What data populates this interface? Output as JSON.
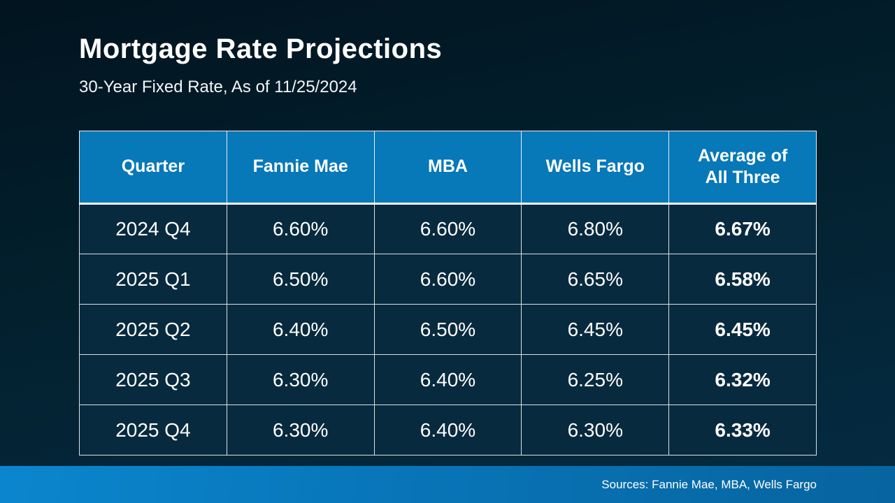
{
  "slide": {
    "title": "Mortgage Rate Projections",
    "subtitle": "30-Year Fixed Rate, As of 11/25/2024",
    "sources_note": "Sources: Fannie Mae, MBA, Wells Fargo"
  },
  "colors": {
    "background_top": "#01141f",
    "background_bottom": "#052c43",
    "header_blue": "#0778b8",
    "cell_navy": "#082a3e",
    "footer_gradient_left": "#0b86ce",
    "footer_gradient_right": "#07649f",
    "grid_line": "#d9e2e8",
    "text": "#ffffff"
  },
  "chart_data": {
    "type": "table",
    "title": "Mortgage Rate Projections",
    "subtitle": "30-Year Fixed Rate, As of 11/25/2024",
    "columns": [
      "Quarter",
      "Fannie Mae",
      "MBA",
      "Wells Fargo",
      "Average of All Three"
    ],
    "rows": [
      [
        "2024 Q4",
        "6.60%",
        "6.60%",
        "6.80%",
        "6.67%"
      ],
      [
        "2025 Q1",
        "6.50%",
        "6.60%",
        "6.65%",
        "6.58%"
      ],
      [
        "2025 Q2",
        "6.40%",
        "6.50%",
        "6.45%",
        "6.45%"
      ],
      [
        "2025 Q3",
        "6.30%",
        "6.40%",
        "6.25%",
        "6.32%"
      ],
      [
        "2025 Q4",
        "6.30%",
        "6.40%",
        "6.30%",
        "6.33%"
      ]
    ]
  }
}
